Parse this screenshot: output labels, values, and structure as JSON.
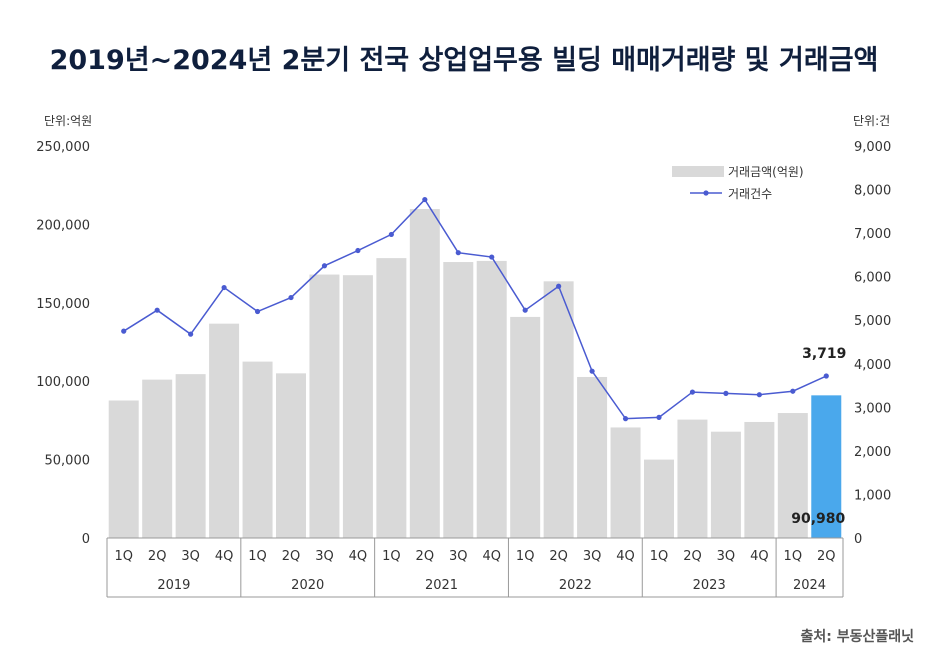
{
  "title": "2019년~2024년 2분기 전국 상업업무용 빌딩 매매거래량 및 거래금액",
  "left_unit": "단위:억원",
  "right_unit": "단위:건",
  "source": "출처: 부동산플래닛",
  "colors": {
    "bar": "#d9d9d9",
    "bar_highlight": "#4aa8ec",
    "line": "#4a5bd1",
    "title": "#0f1f3d"
  },
  "chart_data": {
    "type": "bar",
    "categories": [
      "1Q",
      "2Q",
      "3Q",
      "4Q",
      "1Q",
      "2Q",
      "3Q",
      "4Q",
      "1Q",
      "2Q",
      "3Q",
      "4Q",
      "1Q",
      "2Q",
      "3Q",
      "4Q",
      "1Q",
      "2Q",
      "3Q",
      "4Q",
      "1Q",
      "2Q"
    ],
    "years": [
      {
        "label": "2019",
        "quarters": 4
      },
      {
        "label": "2020",
        "quarters": 4
      },
      {
        "label": "2021",
        "quarters": 4
      },
      {
        "label": "2022",
        "quarters": 4
      },
      {
        "label": "2023",
        "quarters": 4
      },
      {
        "label": "2024",
        "quarters": 2
      }
    ],
    "series": [
      {
        "name": "거래금액(억원)",
        "type": "bar",
        "axis": "left",
        "values": [
          87700,
          101000,
          104500,
          136700,
          112500,
          105000,
          168000,
          167600,
          178500,
          209800,
          176000,
          176700,
          141000,
          163700,
          102700,
          70500,
          50000,
          75500,
          67800,
          74000,
          79700,
          90980
        ]
      },
      {
        "name": "거래건수",
        "type": "line",
        "axis": "right",
        "values": [
          4750,
          5230,
          4680,
          5750,
          5200,
          5520,
          6250,
          6600,
          6970,
          7770,
          6550,
          6450,
          5230,
          5780,
          3830,
          2740,
          2770,
          3350,
          3320,
          3290,
          3370,
          3719
        ]
      }
    ],
    "highlight_index": 21,
    "data_labels": {
      "bar_last": "90,980",
      "line_last": "3,719"
    },
    "y_left": {
      "ticks": [
        "0",
        "50,000",
        "100,000",
        "150,000",
        "200,000",
        "250,000"
      ],
      "values": [
        0,
        50000,
        100000,
        150000,
        200000,
        250000
      ],
      "lim": [
        0,
        250000
      ]
    },
    "y_right": {
      "ticks": [
        "0",
        "1,000",
        "2,000",
        "3,000",
        "4,000",
        "5,000",
        "6,000",
        "7,000",
        "8,000",
        "9,000"
      ],
      "values": [
        0,
        1000,
        2000,
        3000,
        4000,
        5000,
        6000,
        7000,
        8000,
        9000
      ],
      "lim": [
        0,
        9000
      ]
    },
    "legend_position": "top-right",
    "grid": false
  }
}
